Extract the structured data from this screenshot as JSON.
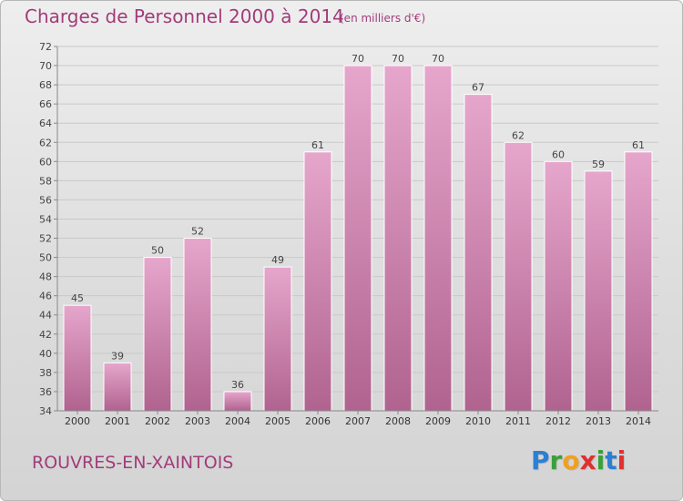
{
  "header": {
    "title": "Charges de Personnel 2000 à 2014",
    "subtitle": "(en milliers d'€)"
  },
  "footer": {
    "commune": "ROUVRES-EN-XAINTOIS",
    "logo_letters": [
      "P",
      "r",
      "o",
      "x",
      "i",
      "t",
      "i"
    ],
    "logo_colors": [
      "#2b7fd4",
      "#3aa03a",
      "#f0a020",
      "#e03030",
      "#3aa03a",
      "#2b7fd4",
      "#e03030"
    ]
  },
  "chart_data": {
    "type": "bar",
    "categories": [
      "2000",
      "2001",
      "2002",
      "2003",
      "2004",
      "2005",
      "2006",
      "2007",
      "2008",
      "2009",
      "2010",
      "2011",
      "2012",
      "2013",
      "2014"
    ],
    "values": [
      45,
      39,
      50,
      52,
      36,
      49,
      61,
      70,
      70,
      70,
      67,
      62,
      60,
      59,
      61
    ],
    "ylim": [
      34,
      72
    ],
    "yticks": [
      34,
      36,
      38,
      40,
      42,
      44,
      46,
      48,
      50,
      52,
      54,
      56,
      58,
      60,
      62,
      64,
      66,
      68,
      70,
      72
    ],
    "grid": true,
    "bar_color_top": "#e6a6cc",
    "bar_color_bottom": "#b0638f",
    "grid_color": "#c9c9c9"
  }
}
